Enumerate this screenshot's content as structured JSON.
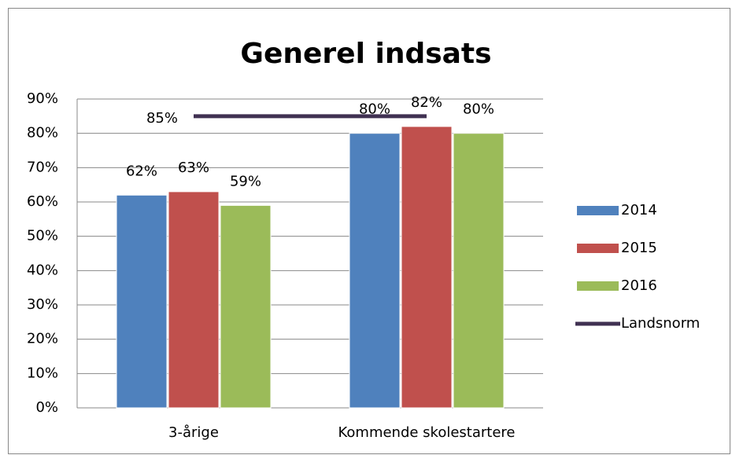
{
  "chart_data": {
    "type": "bar",
    "title": "Generel indsats",
    "categories": [
      "3-årige",
      "Kommende skolestartere"
    ],
    "series": [
      {
        "name": "2014",
        "color": "#4f81bd",
        "values": [
          62,
          80
        ],
        "value_labels": [
          "62%",
          "80%"
        ]
      },
      {
        "name": "2015",
        "color": "#c0504d",
        "values": [
          63,
          82
        ],
        "value_labels": [
          "63%",
          "82%"
        ]
      },
      {
        "name": "2016",
        "color": "#9bbb59",
        "values": [
          59,
          80
        ],
        "value_labels": [
          "59%",
          "80%"
        ]
      }
    ],
    "reference_line": {
      "name": "Landsnorm",
      "color": "#403152",
      "value": 85,
      "label": "85%"
    },
    "ylim": [
      0,
      90
    ],
    "yticks": [
      {
        "value": 0,
        "label": "0%"
      },
      {
        "value": 10,
        "label": "10%"
      },
      {
        "value": 20,
        "label": "20%"
      },
      {
        "value": 30,
        "label": "30%"
      },
      {
        "value": 40,
        "label": "40%"
      },
      {
        "value": 50,
        "label": "50%"
      },
      {
        "value": 60,
        "label": "60%"
      },
      {
        "value": 70,
        "label": "70%"
      },
      {
        "value": 80,
        "label": "80%"
      },
      {
        "value": 90,
        "label": "90%"
      }
    ],
    "grid": true,
    "legend": "right"
  }
}
